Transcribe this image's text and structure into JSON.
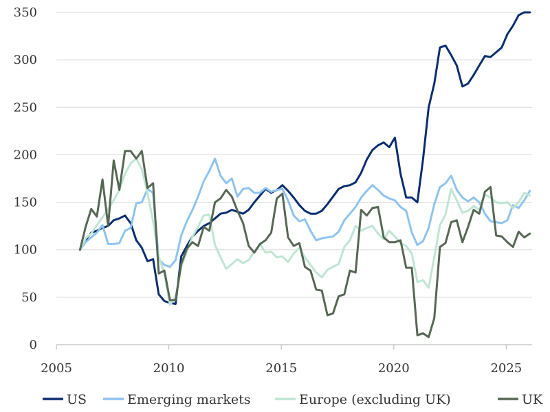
{
  "chart_data": {
    "type": "line",
    "title": "",
    "xlabel": "",
    "ylabel": "",
    "xlim": [
      2005,
      2025.6
    ],
    "ylim": [
      0,
      350
    ],
    "x_ticks": [
      2005,
      2010,
      2015,
      2020,
      2025
    ],
    "x_tick_labels": [
      "2005",
      "2010",
      "2015",
      "2020",
      "2025"
    ],
    "y_ticks": [
      0,
      50,
      100,
      150,
      200,
      250,
      300,
      350
    ],
    "y_tick_labels": [
      "0",
      "50",
      "100",
      "150",
      "200",
      "250",
      "300",
      "350"
    ],
    "grid": true,
    "legend_position": "bottom",
    "x": [
      2005.5,
      2005.75,
      2006,
      2006.25,
      2006.5,
      2006.75,
      2007,
      2007.25,
      2007.5,
      2007.75,
      2008,
      2008.25,
      2008.5,
      2008.75,
      2009,
      2009.25,
      2009.5,
      2009.75,
      2010,
      2010.25,
      2010.5,
      2010.75,
      2011,
      2011.25,
      2011.5,
      2011.75,
      2012,
      2012.25,
      2012.5,
      2012.75,
      2013,
      2013.25,
      2013.5,
      2013.75,
      2014,
      2014.25,
      2014.5,
      2014.75,
      2015,
      2015.25,
      2015.5,
      2015.75,
      2016,
      2016.25,
      2016.5,
      2016.75,
      2017,
      2017.25,
      2017.5,
      2017.75,
      2018,
      2018.25,
      2018.5,
      2018.75,
      2019,
      2019.25,
      2019.5,
      2019.75,
      2020,
      2020.25,
      2020.5,
      2020.75,
      2021,
      2021.25,
      2021.5,
      2021.75,
      2022,
      2022.25,
      2022.5,
      2022.75,
      2023,
      2023.25,
      2023.5,
      2023.75,
      2024,
      2024.25,
      2024.5,
      2024.75,
      2025,
      2025.25,
      2025.5
    ],
    "series": [
      {
        "name": "US",
        "color": "#0b2d6f",
        "values": [
          100,
          110,
          118,
          120,
          123,
          125,
          131,
          133,
          136,
          128,
          110,
          102,
          88,
          90,
          53,
          46,
          44,
          43,
          93,
          104,
          114,
          120,
          125,
          128,
          133,
          138,
          139,
          142,
          140,
          138,
          142,
          150,
          157,
          164,
          160,
          163,
          168,
          162,
          155,
          147,
          141,
          138,
          138,
          141,
          148,
          156,
          164,
          167,
          168,
          171,
          181,
          195,
          205,
          210,
          213,
          208,
          218,
          180,
          155,
          155,
          150,
          195,
          250,
          275,
          313,
          315,
          305,
          294,
          272,
          275,
          284,
          294,
          304,
          303,
          308,
          313,
          327,
          336,
          347,
          358,
          350
        ]
      },
      {
        "name": "Emerging markets",
        "color": "#8ec3ee",
        "values": [
          100,
          108,
          113,
          118,
          126,
          106,
          106,
          107,
          120,
          123,
          149,
          150,
          164,
          160,
          90,
          84,
          82,
          89,
          115,
          130,
          142,
          156,
          172,
          183,
          196,
          178,
          170,
          175,
          156,
          164,
          165,
          160,
          160,
          165,
          161,
          163,
          164,
          152,
          136,
          130,
          132,
          120,
          110,
          112,
          113,
          114,
          119,
          131,
          138,
          145,
          155,
          162,
          168,
          163,
          157,
          154,
          152,
          145,
          141,
          118,
          105,
          109,
          123,
          148,
          166,
          170,
          178,
          163,
          155,
          151,
          155,
          150,
          138,
          130,
          129,
          128,
          131,
          147,
          144,
          152,
          162
        ]
      },
      {
        "name": "Europe (excluding UK)",
        "color": "#bfe5d3",
        "values": [
          100,
          112,
          117,
          126,
          134,
          143,
          152,
          163,
          180,
          191,
          196,
          185,
          160,
          130,
          93,
          75,
          42,
          50,
          82,
          98,
          114,
          124,
          136,
          137,
          105,
          92,
          80,
          85,
          90,
          86,
          89,
          98,
          106,
          97,
          98,
          92,
          93,
          87,
          96,
          102,
          92,
          84,
          76,
          71,
          79,
          82,
          85,
          103,
          110,
          125,
          120,
          123,
          125,
          117,
          111,
          120,
          114,
          107,
          104,
          96,
          66,
          68,
          60,
          92,
          126,
          137,
          164,
          152,
          139,
          141,
          146,
          142,
          158,
          155,
          150,
          149,
          150,
          144,
          150,
          160,
          157
        ]
      },
      {
        "name": "UK",
        "color": "#566754",
        "values": [
          100,
          124,
          143,
          135,
          174,
          125,
          194,
          163,
          204,
          204,
          196,
          204,
          165,
          170,
          75,
          78,
          47,
          47,
          85,
          101,
          108,
          104,
          124,
          120,
          150,
          154,
          163,
          156,
          141,
          128,
          104,
          97,
          106,
          110,
          118,
          154,
          159,
          113,
          104,
          107,
          82,
          78,
          58,
          57,
          31,
          33,
          51,
          53,
          78,
          76,
          142,
          136,
          144,
          145,
          113,
          108,
          108,
          110,
          81,
          81,
          10,
          12,
          8,
          28,
          103,
          107,
          129,
          131,
          108,
          124,
          142,
          138,
          161,
          166,
          115,
          114,
          108,
          103,
          119,
          113,
          117
        ]
      }
    ]
  }
}
